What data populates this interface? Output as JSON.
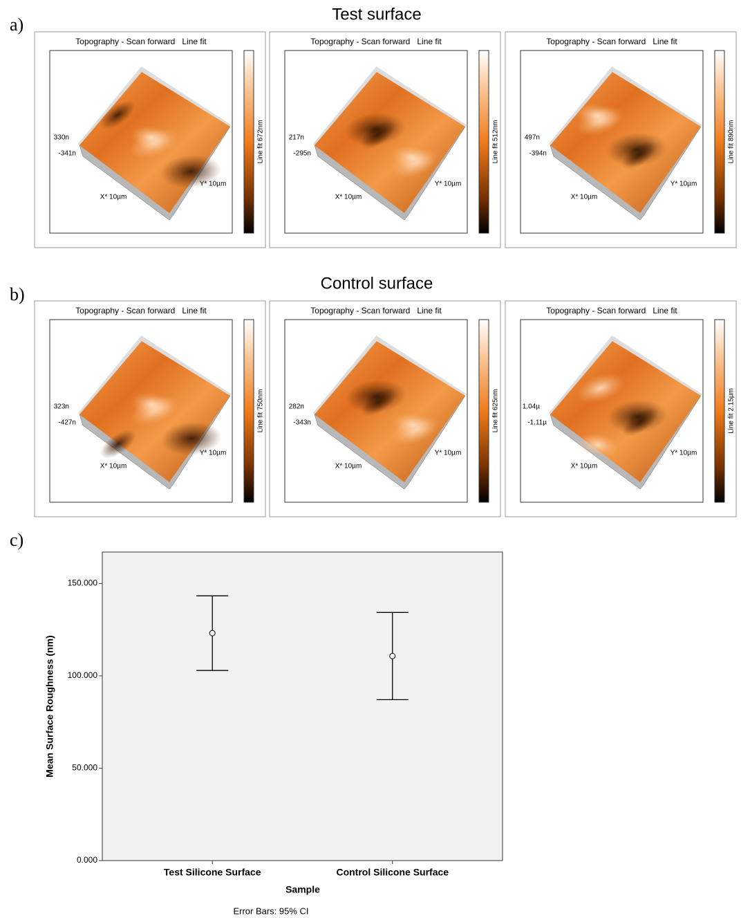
{
  "panel_labels": [
    "a)",
    "b)",
    "c)"
  ],
  "afm": [
    {
      "title": "Test surface",
      "scans": [
        {
          "header": "Topography - Scan forward   Line fit",
          "colorbar": "Line fit 672nm",
          "z_max": "330n",
          "z_min": "-341n",
          "x_axis": "X* 10µm",
          "y_axis": "Y* 10µm"
        },
        {
          "header": "Topography - Scan forward   Line fit",
          "colorbar": "Line fit 512nm",
          "z_max": "217n",
          "z_min": "-295n",
          "x_axis": "X* 10µm",
          "y_axis": "Y* 10µm"
        },
        {
          "header": "Topography - Scan forward   Line fit",
          "colorbar": "Line fit 890nm",
          "z_max": "497n",
          "z_min": "-394n",
          "x_axis": "X* 10µm",
          "y_axis": "Y* 10µm"
        }
      ]
    },
    {
      "title": "Control surface",
      "scans": [
        {
          "header": "Topography - Scan forward   Line fit",
          "colorbar": "Line fit 750nm",
          "z_max": "323n",
          "z_min": "-427n",
          "x_axis": "X* 10µm",
          "y_axis": "Y* 10µm"
        },
        {
          "header": "Topography - Scan forward   Line fit",
          "colorbar": "Line fit 625nm",
          "z_max": "282n",
          "z_min": "-343n",
          "x_axis": "X* 10µm",
          "y_axis": "Y* 10µm"
        },
        {
          "header": "Topography - Scan forward   Line fit",
          "colorbar": "Line fit 2.15µm",
          "z_max": "1.04µ",
          "z_min": "-1.11µ",
          "x_axis": "X* 10µm",
          "y_axis": "Y* 10µm"
        }
      ]
    }
  ],
  "chart_data": {
    "type": "errorbar",
    "x_label": "Sample",
    "y_label": "Mean Surface Roughness (nm)",
    "note": "Error Bars: 95% CI",
    "categories": [
      "Test Silicone Surface",
      "Control Silicone Surface"
    ],
    "values": [
      123.1,
      110.7
    ],
    "errors": [
      20.2,
      23.6
    ],
    "color": "#000000",
    "ylim": [
      0,
      167
    ],
    "yticks": [
      {
        "value": 0,
        "label": "0.000"
      },
      {
        "value": 50,
        "label": "50.000"
      },
      {
        "value": 100,
        "label": "100.000"
      },
      {
        "value": 150,
        "label": "150.000"
      }
    ]
  }
}
